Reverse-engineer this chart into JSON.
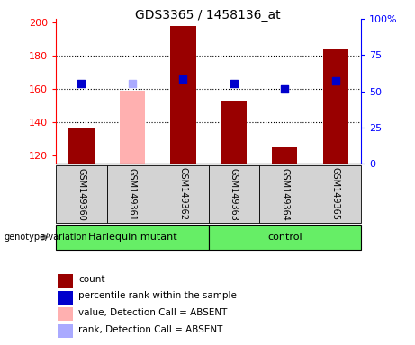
{
  "title": "GDS3365 / 1458136_at",
  "samples": [
    "GSM149360",
    "GSM149361",
    "GSM149362",
    "GSM149363",
    "GSM149364",
    "GSM149365"
  ],
  "bar_values": [
    136,
    null,
    198,
    153,
    125,
    184
  ],
  "bar_absent_values": [
    null,
    159,
    null,
    null,
    null,
    null
  ],
  "bar_color_present": "#990000",
  "bar_color_absent": "#ffb0b0",
  "rank_values": [
    163,
    null,
    166,
    163,
    160,
    165
  ],
  "rank_absent_values": [
    null,
    163,
    null,
    null,
    null,
    null
  ],
  "rank_color_present": "#0000cc",
  "rank_color_absent": "#aaaaff",
  "ylim_left": [
    115,
    202
  ],
  "ylim_right": [
    0,
    100
  ],
  "yticks_left": [
    120,
    140,
    160,
    180,
    200
  ],
  "yticks_right": [
    0,
    25,
    50,
    75,
    100
  ],
  "yticklabels_right": [
    "0",
    "25",
    "50",
    "75",
    "100%"
  ],
  "grid_yticks": [
    140,
    160,
    180
  ],
  "bar_width": 0.5,
  "rank_marker_size": 40,
  "sample_bg_color": "#d3d3d3",
  "green_color": "#66ee66",
  "legend_items": [
    {
      "label": "count",
      "color": "#990000"
    },
    {
      "label": "percentile rank within the sample",
      "color": "#0000cc"
    },
    {
      "label": "value, Detection Call = ABSENT",
      "color": "#ffb0b0"
    },
    {
      "label": "rank, Detection Call = ABSENT",
      "color": "#aaaaff"
    }
  ]
}
